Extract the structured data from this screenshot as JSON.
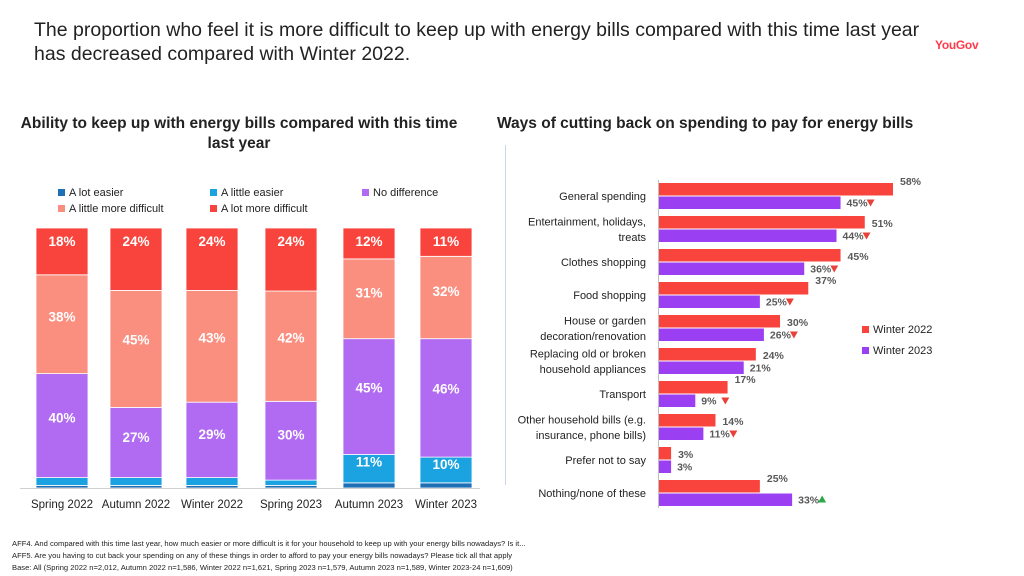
{
  "headline": "The proportion who feel it is more difficult to keep up with energy bills compared with this time last year has decreased compared with Winter 2022.",
  "logo": "YouGov",
  "colors": {
    "a_lot_easier": "#1f6fb5",
    "a_little_easier": "#1aa3e0",
    "no_difference": "#b06bf2",
    "a_little_more_difficult": "#fa8f80",
    "a_lot_more_difficult": "#f8443c",
    "winter_2022": "#f8443c",
    "winter_2023": "#9b3ff2",
    "arrow_down": "#e8413a",
    "arrow_up": "#2aa84a"
  },
  "chart_data": [
    {
      "type": "bar",
      "stacked": true,
      "title": "Ability to keep up with energy bills compared with this time last year",
      "categories": [
        "Spring 2022",
        "Autumn 2022",
        "Winter 2022",
        "Spring 2023",
        "Autumn 2023",
        "Winter 2023"
      ],
      "series": [
        {
          "name": "A lot easier",
          "key": "a_lot_easier",
          "values": [
            1,
            1,
            1,
            1,
            2,
            2
          ]
        },
        {
          "name": "A little easier",
          "key": "a_little_easier",
          "values": [
            3,
            3,
            3,
            2,
            11,
            10
          ]
        },
        {
          "name": "No difference",
          "key": "no_difference",
          "values": [
            40,
            27,
            29,
            30,
            45,
            46
          ]
        },
        {
          "name": "A little more difficult",
          "key": "a_little_more_difficult",
          "values": [
            38,
            45,
            43,
            42,
            31,
            32
          ]
        },
        {
          "name": "A lot more difficult",
          "key": "a_lot_more_difficult",
          "values": [
            18,
            24,
            24,
            24,
            12,
            11
          ]
        }
      ],
      "value_suffix": "%",
      "ylim": [
        0,
        100
      ],
      "legend": "top"
    },
    {
      "type": "bar",
      "orientation": "horizontal",
      "title": "Ways of cutting back on spending to pay for energy bills",
      "categories": [
        "General spending",
        "Entertainment, holidays, treats",
        "Clothes shopping",
        "Food shopping",
        "House or garden decoration/renovation",
        "Replacing old or broken household appliances",
        "Transport",
        "Other household bills (e.g. insurance, phone bills)",
        "Prefer not to say",
        "Nothing/none of these"
      ],
      "category_lines": [
        [
          "General spending"
        ],
        [
          "Entertainment, holidays,",
          "treats"
        ],
        [
          "Clothes shopping"
        ],
        [
          "Food shopping"
        ],
        [
          "House or garden",
          "decoration/renovation"
        ],
        [
          "Replacing old or broken",
          "household appliances"
        ],
        [
          "Transport"
        ],
        [
          "Other household bills (e.g.",
          "insurance, phone bills)"
        ],
        [
          "Prefer not to say"
        ],
        [
          "Nothing/none of these"
        ]
      ],
      "series": [
        {
          "name": "Winter 2022",
          "key": "winter_2022",
          "values": [
            58,
            51,
            45,
            37,
            30,
            24,
            17,
            14,
            3,
            25
          ]
        },
        {
          "name": "Winter 2023",
          "key": "winter_2023",
          "values": [
            45,
            44,
            36,
            25,
            26,
            21,
            9,
            11,
            3,
            33
          ]
        }
      ],
      "change_markers": [
        "down",
        "down",
        "down",
        "down",
        "down",
        "none",
        "down",
        "down",
        "none",
        "up"
      ],
      "value_suffix": "%",
      "xlim": [
        0,
        60
      ],
      "legend": "right"
    }
  ],
  "footnotes": [
    "AFF4. And compared with this time last year, how much easier or more difficult is it for your household to keep up with your energy bills nowadays? Is it...",
    "AFF5. Are you having to cut back your spending on any of these things in order to afford to pay your energy bills nowadays? Please tick all that apply",
    "Base: All (Spring 2022 n=2,012, Autumn 2022 n=1,586, Winter 2022 n=1,621, Spring 2023 n=1,579, Autumn 2023 n=1,589, Winter 2023-24 n=1,609)"
  ]
}
